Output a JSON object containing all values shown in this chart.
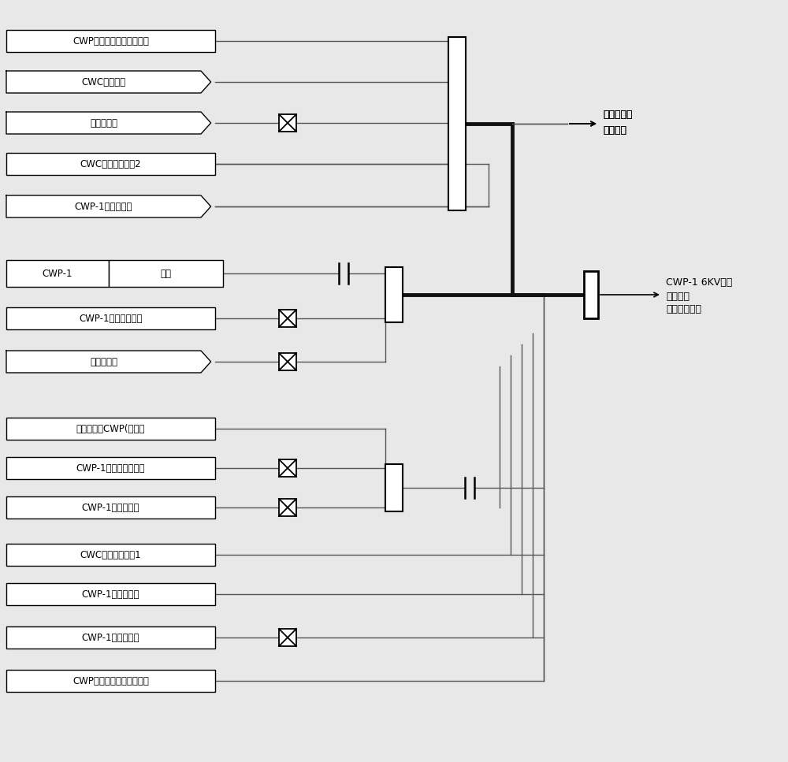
{
  "bg_color": "#e8e8e8",
  "fig_w": 10.0,
  "fig_h": 9.67,
  "dpi": 100,
  "labels_top": [
    "CWP控制方式选择（变频）",
    "CWC远方控制",
    "变频器故障",
    "CWC启动允许信号2",
    "CWP-1断路器合闸"
  ],
  "label_cwp1_left": "CWP-1",
  "label_cwp1_right": "远方",
  "labels_mid": [
    "CWP-1跳泵条件成立",
    "变频器故障"
  ],
  "labels_bot": [
    "上位机启动CWP(变频）",
    "CWP-1断路器保护动作",
    "CWP-1轴承温度高",
    "CWC启动允许信号1",
    "CWP-1出口门全关",
    "CWP-1断路器合闸",
    "CWP控制方式选择（变频）"
  ],
  "out_top_line1": "变频器启动",
  "out_top_line2": "条件成立",
  "out_mid_line1": "CWP-1 6KV开关",
  "out_mid_line2": "合闸条件",
  "out_mid_line3": "成立（变频）"
}
